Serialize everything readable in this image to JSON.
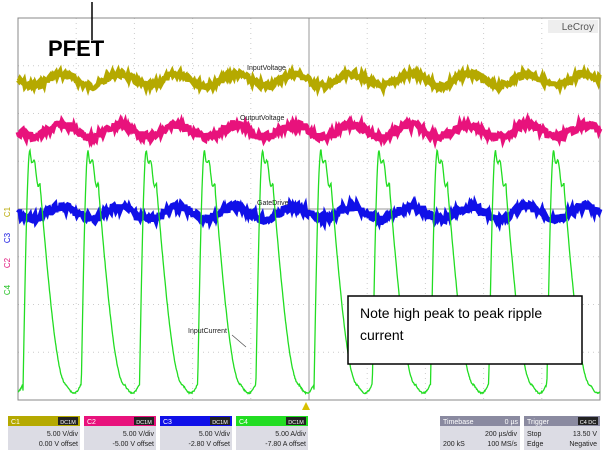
{
  "header": {
    "label": "PFET",
    "brand": "LeCroy"
  },
  "traces": [
    {
      "name": "InputVoltage"
    },
    {
      "name": "OutputVoltage"
    },
    {
      "name": "GateDrive"
    },
    {
      "name": "InputCurrent"
    }
  ],
  "note": "Note high peak to peak ripple current",
  "channels": [
    {
      "id": "C1",
      "coupling": "DC1M",
      "scale": "5.00 V/div",
      "offset": "0.00 V offset"
    },
    {
      "id": "C2",
      "coupling": "DC1M",
      "scale": "5.00 V/div",
      "offset": "-5.00 V offset"
    },
    {
      "id": "C3",
      "coupling": "DC1M",
      "scale": "5.00 V/div",
      "offset": "-2.80 V offset"
    },
    {
      "id": "C4",
      "coupling": "DC1M",
      "scale": "5.00 A/div",
      "offset": "-7.80 A offset"
    }
  ],
  "timebase": {
    "title": "Timebase",
    "delay": "0 µs",
    "scale": "200 µs/div",
    "samples": "200 kS",
    "rate": "100 MS/s"
  },
  "trigger": {
    "title": "Trigger",
    "source": "C4 DC",
    "mode": "Stop",
    "level": "13.50 V",
    "type": "Edge",
    "slope": "Negative"
  }
}
